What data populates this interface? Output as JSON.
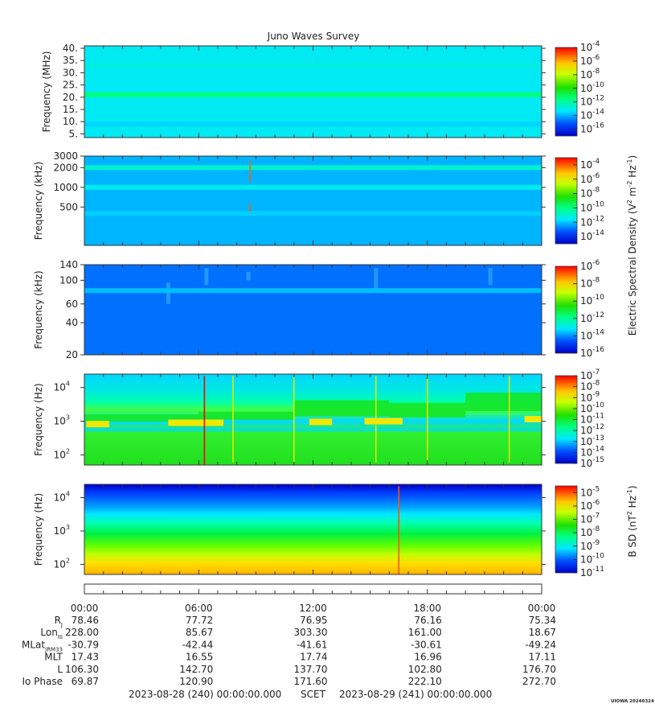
{
  "title": "Juno Waves Survey",
  "chart_data": [
    {
      "type": "heatmap",
      "name": "panel-1",
      "ylabel": "Frequency (MHz)",
      "yscale": "linear",
      "ylim": [
        3.5,
        41
      ],
      "yticks": [
        {
          "v": 40,
          "label": "40."
        },
        {
          "v": 35,
          "label": "35."
        },
        {
          "v": 30,
          "label": "30."
        },
        {
          "v": 25,
          "label": "25."
        },
        {
          "v": 20,
          "label": "20."
        },
        {
          "v": 15,
          "label": "15."
        },
        {
          "v": 10,
          "label": "10."
        },
        {
          "v": 5,
          "label": "5."
        }
      ],
      "colorbar": {
        "min_exp": -17,
        "max_exp": -4,
        "labels": [
          -4,
          -6,
          -8,
          -10,
          -12,
          -14,
          -16
        ]
      },
      "background_level": -13.2,
      "bands": [
        {
          "f": 21,
          "level": -11.5
        },
        {
          "f": 9,
          "level": -13.6
        },
        {
          "f": 33,
          "level": -12.9
        }
      ],
      "spikes": []
    },
    {
      "type": "heatmap",
      "name": "panel-2",
      "ylabel": "Frequency (kHz)",
      "yscale": "log",
      "ylim": [
        130,
        3000
      ],
      "yticks": [
        {
          "v": 3000,
          "label": "3000"
        },
        {
          "v": 2000,
          "label": "2000"
        },
        {
          "v": 1000,
          "label": "1000"
        },
        {
          "v": 500,
          "label": "500"
        }
      ],
      "colorbar": {
        "min_exp": -15,
        "max_exp": -3,
        "labels": [
          -4,
          -6,
          -8,
          -10,
          -12,
          -14
        ]
      },
      "background_level": -12.2,
      "bands": [
        {
          "f": 2000,
          "level": -11.0
        },
        {
          "f": 1000,
          "level": -11.4
        },
        {
          "f": 400,
          "level": -11.9
        }
      ],
      "spikes": [
        {
          "t": 8.7,
          "f1": 1200,
          "f2": 2500,
          "level": -4
        },
        {
          "t": 8.7,
          "f1": 420,
          "f2": 560,
          "level": -4
        }
      ]
    },
    {
      "type": "heatmap",
      "name": "panel-3",
      "ylabel": "Frequency (kHz)",
      "yscale": "log",
      "ylim": [
        20,
        140
      ],
      "yticks": [
        {
          "v": 140,
          "label": "140"
        },
        {
          "v": 100,
          "label": "100"
        },
        {
          "v": 60,
          "label": "60"
        },
        {
          "v": 40,
          "label": "40"
        },
        {
          "v": 20,
          "label": "20"
        }
      ],
      "colorbar": {
        "min_exp": -16,
        "max_exp": -6,
        "labels": [
          -6,
          -8,
          -10,
          -12,
          -14,
          -16
        ]
      },
      "background_level": -14.3,
      "bands": [
        {
          "f": 80,
          "level": -13.6
        }
      ],
      "spikes": []
    },
    {
      "type": "heatmap",
      "name": "panel-4",
      "ylabel": "Frequency (Hz)",
      "yscale": "log",
      "ylim": [
        50,
        25000
      ],
      "yticks": [
        {
          "v": 10000,
          "label": "10",
          "exp": "4"
        },
        {
          "v": 1000,
          "label": "10",
          "exp": "3"
        },
        {
          "v": 100,
          "label": "10",
          "exp": "2"
        }
      ],
      "colorbar": {
        "min_exp": -15,
        "max_exp": -7,
        "labels": [
          -7,
          -8,
          -9,
          -10,
          -11,
          -12,
          -13,
          -14,
          -15
        ]
      },
      "background_level": -11.3,
      "spikes": [
        {
          "t": 6.3,
          "f1": 50,
          "f2": 22000,
          "level": -7
        },
        {
          "t": 7.8,
          "f1": 60,
          "f2": 22000,
          "level": -9
        },
        {
          "t": 11.0,
          "f1": 60,
          "f2": 22000,
          "level": -9
        },
        {
          "t": 15.3,
          "f1": 60,
          "f2": 22000,
          "level": -9
        },
        {
          "t": 18.0,
          "f1": 60,
          "f2": 22000,
          "level": -9
        },
        {
          "t": 22.3,
          "f1": 60,
          "f2": 22000,
          "level": -9
        }
      ]
    },
    {
      "type": "heatmap",
      "name": "panel-5",
      "ylabel": "Frequency (Hz)",
      "yscale": "log",
      "ylim": [
        50,
        25000
      ],
      "yticks": [
        {
          "v": 10000,
          "label": "10",
          "exp": "4"
        },
        {
          "v": 1000,
          "label": "10",
          "exp": "3"
        },
        {
          "v": 100,
          "label": "10",
          "exp": "2"
        }
      ],
      "colorbar": {
        "min_exp": -11,
        "max_exp": -4.5,
        "labels": [
          -5,
          -6,
          -7,
          -8,
          -9,
          -10,
          -11
        ]
      },
      "background_level": -9,
      "spikes": [
        {
          "t": 16.5,
          "f1": 50,
          "f2": 22000,
          "level": -5
        }
      ]
    }
  ],
  "colorbar_titles": {
    "electric": "Electric Spectral Density",
    "magnetic": "B SD"
  },
  "ephemeris": {
    "time_labels": [
      "00:00",
      "06:00",
      "12:00",
      "18:00",
      "00:00"
    ],
    "rows": [
      {
        "label": "R",
        "sub": "J",
        "values": [
          "78.46",
          "77.72",
          "76.95",
          "76.16",
          "75.34"
        ]
      },
      {
        "label": "Lon",
        "sub": "III",
        "values": [
          "228.00",
          "85.67",
          "303.30",
          "161.00",
          "18.67"
        ]
      },
      {
        "label": "MLat",
        "sub": "JRM33",
        "values": [
          "-30.79",
          "-42.44",
          "-41.61",
          "-30.61",
          "-49.24"
        ]
      },
      {
        "label": "MLT",
        "sub": "",
        "values": [
          "17.43",
          "16.55",
          "17.74",
          "16.96",
          "17.11"
        ]
      },
      {
        "label": "L",
        "sub": "",
        "values": [
          "106.30",
          "142.70",
          "137.70",
          "102.80",
          "176.70"
        ]
      },
      {
        "label": "Io Phase",
        "sub": "",
        "values": [
          "69.87",
          "120.90",
          "171.60",
          "222.10",
          "272.70"
        ]
      }
    ]
  },
  "footer": {
    "start": "2023-08-28 (240) 00:00:00.000",
    "scet": "SCET",
    "end": "2023-08-29 (241) 00:00:00.000",
    "version": "UIOWA 20240324"
  }
}
